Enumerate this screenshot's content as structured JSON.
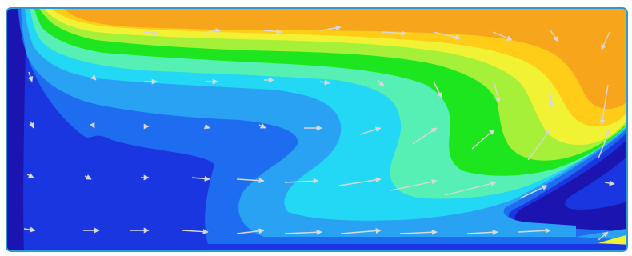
{
  "figure": {
    "kind": "flow-field-contour",
    "palette": {
      "level1": "#1c14b0",
      "level2": "#1a36e0",
      "level3": "#1e6cf0",
      "level4": "#2aa2f4",
      "level5": "#22d8f4",
      "level6": "#56f0b4",
      "level7": "#1ee61e",
      "level8": "#a6f03a",
      "level9": "#f2f234",
      "level10": "#ffcc18",
      "level11": "#f7a51a",
      "frame_edge": "#2e9ad4",
      "vectors": "#d8d8d8"
    },
    "vector_glyph": "arrow"
  }
}
